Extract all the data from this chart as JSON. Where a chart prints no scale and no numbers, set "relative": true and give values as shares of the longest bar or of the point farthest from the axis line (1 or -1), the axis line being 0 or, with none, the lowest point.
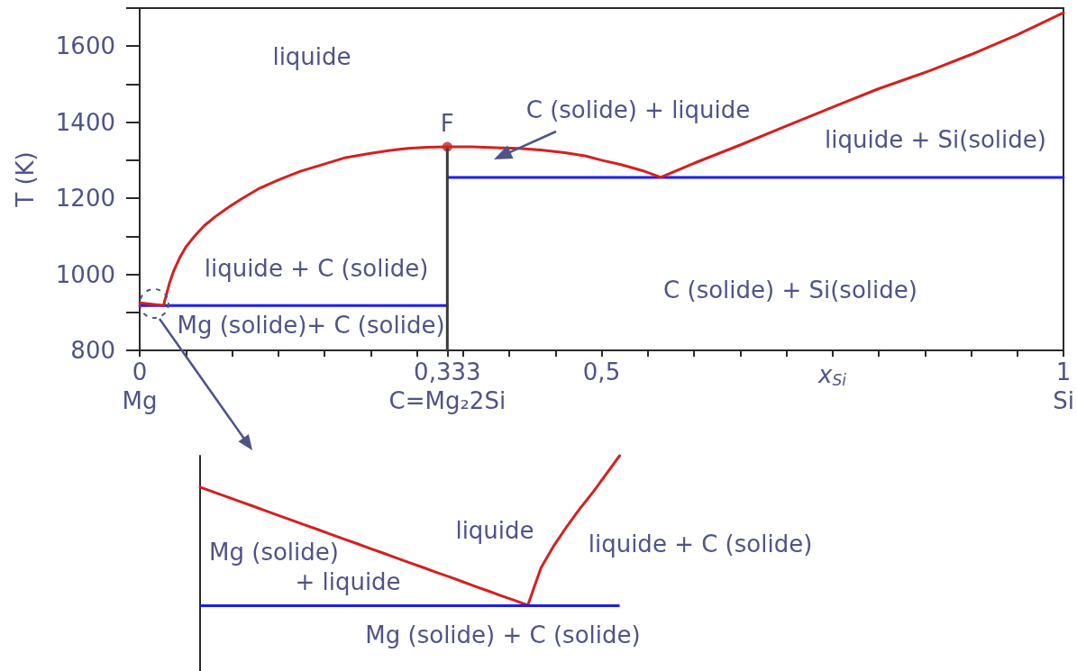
{
  "chart_data": [
    {
      "type": "line",
      "xlabel": "x$_{Si}$",
      "ylabel": "T (K)",
      "xlim": [
        0,
        1
      ],
      "xticks": [
        {
          "value": 0,
          "label": "0\nMg"
        },
        {
          "value": 0.05,
          "label": null
        },
        {
          "value": 0.1,
          "label": null
        },
        {
          "value": 0.15,
          "label": null
        },
        {
          "value": 0.2,
          "label": null
        },
        {
          "value": 0.25,
          "label": null
        },
        {
          "value": 0.3,
          "label": null
        },
        {
          "value": 0.333,
          "label": "0,333\nC=Mg₂2Si"
        },
        {
          "value": 0.35,
          "label": null
        },
        {
          "value": 0.4,
          "label": null
        },
        {
          "value": 0.45,
          "label": null
        },
        {
          "value": 0.5,
          "label": "0,5"
        },
        {
          "value": 0.55,
          "label": null
        },
        {
          "value": 0.6,
          "label": null
        },
        {
          "value": 0.65,
          "label": null
        },
        {
          "value": 0.7,
          "label": null
        },
        {
          "value": 0.75,
          "label": null
        },
        {
          "value": 0.8,
          "label": null
        },
        {
          "value": 0.85,
          "label": null
        },
        {
          "value": 0.9,
          "label": null
        },
        {
          "value": 0.95,
          "label": null
        },
        {
          "value": 1,
          "label": "1\nSi"
        }
      ],
      "ylim": [
        800,
        1700
      ],
      "yticks": [
        800,
        {
          "value": 900,
          "label": null
        },
        1000,
        {
          "value": 1100,
          "label": null
        },
        1200,
        {
          "value": 1300,
          "label": null
        },
        1400,
        {
          "value": 1500,
          "label": null
        },
        1600,
        {
          "value": 1700,
          "label": null
        }
      ],
      "marker": "none",
      "line_style": "solid",
      "series": [
        {
          "color": "#1c1cf2",
          "x": [
            0,
            0.333
          ],
          "values": [
            918,
            918
          ]
        },
        {
          "color": "#1c1cf2",
          "x": [
            0.333,
            1
          ],
          "values": [
            1255,
            1255
          ]
        },
        {
          "color": "#3a3a3a",
          "x": [
            0.333,
            0.333
          ],
          "values": [
            800,
            1335
          ]
        },
        {
          "color": "#d42020",
          "x": [
            0,
            0.026,
            0.027,
            0.029,
            0.032,
            0.037,
            0.043,
            0.05,
            0.06,
            0.07,
            0.082,
            0.096,
            0.11,
            0.128,
            0.15,
            0.174,
            0.2,
            0.223,
            0.25,
            0.271,
            0.29,
            0.311,
            0.333,
            0.36,
            0.385,
            0.41,
            0.434,
            0.46,
            0.483,
            0.5,
            0.522,
            0.545,
            0.564,
            0.6,
            0.65,
            0.7,
            0.76,
            0.8,
            0.855,
            0.9,
            0.95,
            1
          ],
          "values": [
            925,
            918,
            930,
            947,
            975,
            1010,
            1042,
            1072,
            1102,
            1128,
            1152,
            1176,
            1198,
            1224,
            1248,
            1271,
            1290,
            1307,
            1318,
            1326,
            1331,
            1334,
            1335,
            1335,
            1333,
            1331,
            1327,
            1320,
            1311,
            1300,
            1288,
            1272,
            1255,
            1292,
            1340,
            1390,
            1449,
            1488,
            1535,
            1578,
            1630,
            1688
          ]
        },
        {
          "type": "scatter",
          "marker": "circle",
          "color": "#d42020",
          "x": [
            0.333
          ],
          "values": [
            1335
          ]
        }
      ],
      "annotations": [
        "liquide",
        {
          "text": "F",
          "x": 0.333,
          "y": 1335
        },
        "C (solide) + liquide",
        "liquide + Si(solide)",
        "liquide + C (solide)",
        "C (solide) + Si(solide)",
        "Mg (solide)+ C (solide)"
      ]
    },
    {
      "type": "line",
      "relative": true,
      "categories": [
        null,
        null,
        null,
        null,
        null,
        null,
        null,
        null,
        null,
        null,
        null,
        null,
        null,
        null,
        null,
        null,
        null,
        null,
        null,
        null,
        null,
        null,
        null,
        null,
        null,
        null,
        null,
        null,
        null,
        null,
        null,
        null,
        null
      ],
      "marker": "none",
      "series": [
        {
          "color": "#d42020",
          "values": [
            0.79,
            0.758,
            0.727,
            0.695,
            0.664,
            0.632,
            0.6,
            0.569,
            0.537,
            0.506,
            0.474,
            0.442,
            0.411,
            0.379,
            0.348,
            0.316,
            0.284,
            0.253,
            0.221,
            0.19,
            0.158,
            0.126,
            0.095,
            0.063,
            0.032,
            0,
            0.25,
            0.4,
            0.53,
            0.65,
            0.76,
            0.88,
            1
          ]
        }
      ],
      "ref_lines": [
        {
          "axis": "y",
          "value": 0,
          "color": "#1c1cf2"
        }
      ],
      "annotations": [
        "liquide",
        "Mg (solide)",
        "+ liquide",
        "liquide + C (solide)",
        "Mg (solide) + C (solide)"
      ]
    }
  ]
}
